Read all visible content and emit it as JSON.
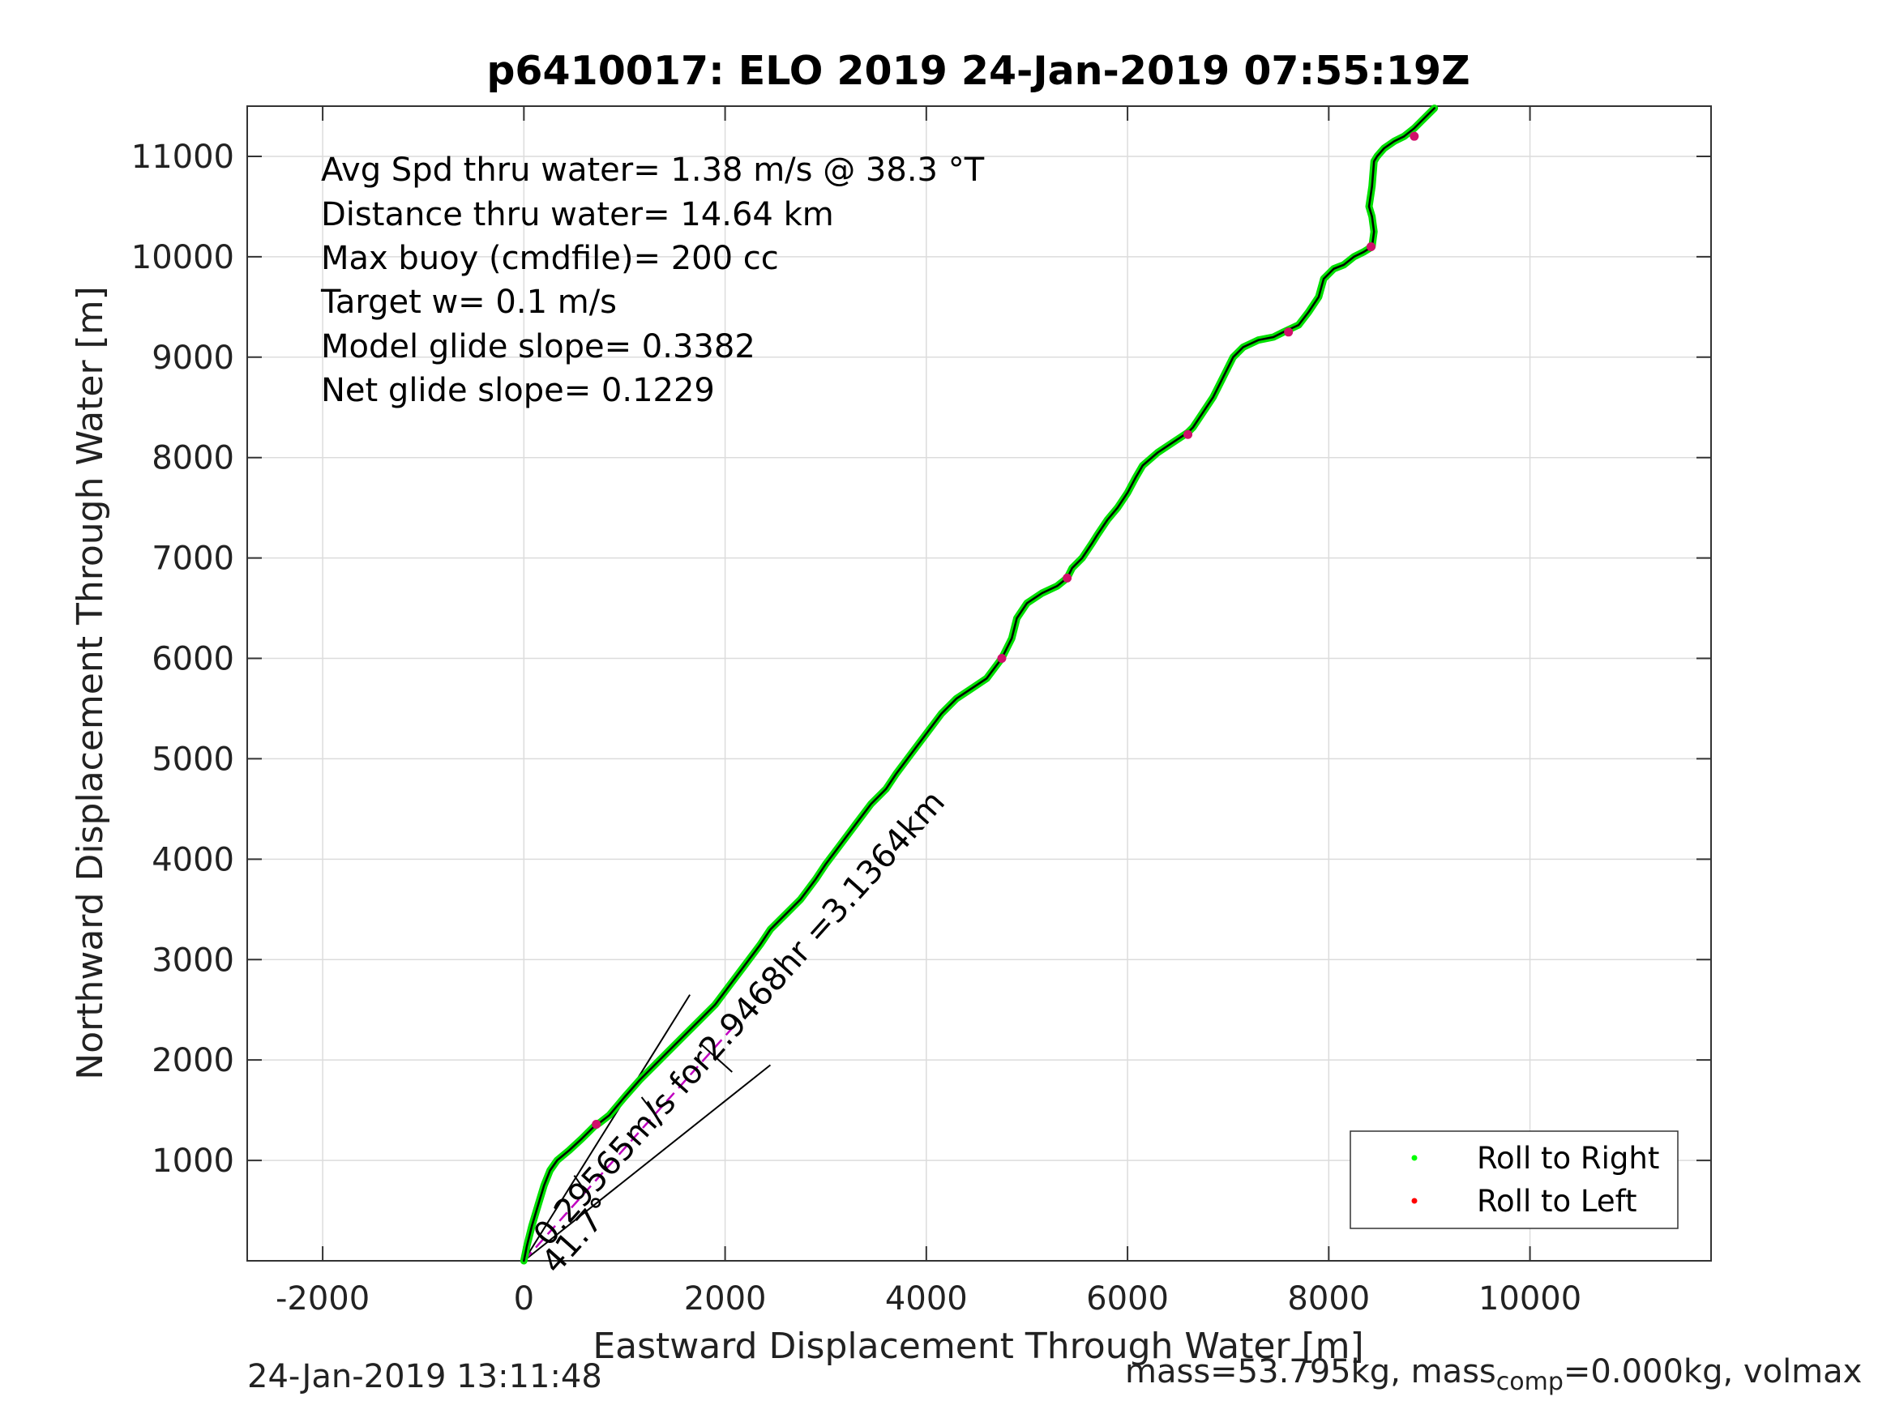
{
  "chart_data": {
    "type": "line",
    "title": "p6410017: ELO 2019 24-Jan-2019 07:55:19Z",
    "xlabel": "Eastward Displacement Through Water [m]",
    "ylabel": "Northward Displacement Through Water [m]",
    "xlim": [
      -2750,
      11800
    ],
    "ylim": [
      0,
      11500
    ],
    "xticks": [
      -2000,
      0,
      2000,
      4000,
      6000,
      8000,
      10000
    ],
    "yticks": [
      1000,
      2000,
      3000,
      4000,
      5000,
      6000,
      7000,
      8000,
      9000,
      10000,
      11000
    ],
    "grid": true,
    "annotations": [
      "Avg Spd thru water=  1.38 m/s @  38.3 °T",
      "Distance thru water= 14.64 km",
      "Max buoy (cmdfile)= 200 cc",
      "Target w= 0.1 m/s",
      "Model glide slope= 0.3382",
      "Net glide slope= 0.1229"
    ],
    "segment_label": "0.29565m/s for2.9468hr =3.1364km",
    "angle_label": "41.7°",
    "legend": {
      "position": "bottom-right",
      "entries": [
        {
          "label": "Roll to Right",
          "color": "#00ff00"
        },
        {
          "label": "Roll to Left",
          "color": "#ff0000"
        }
      ]
    },
    "colors": {
      "track_outer": "#00e000",
      "track_inner": "#000000",
      "roll_left_marks": "#d0106a",
      "heading_segment": "#c000c0"
    },
    "track": {
      "x": [
        0,
        30,
        80,
        140,
        200,
        260,
        330,
        450,
        580,
        700,
        760,
        850,
        1000,
        1150,
        1300,
        1450,
        1600,
        1750,
        1900,
        2050,
        2200,
        2350,
        2450,
        2600,
        2750,
        2900,
        3000,
        3150,
        3300,
        3450,
        3600,
        3700,
        3850,
        4000,
        4150,
        4300,
        4450,
        4600,
        4750,
        4850,
        4900,
        5000,
        5150,
        5300,
        5400,
        5450,
        5550,
        5650,
        5700,
        5800,
        5900,
        6000,
        6080,
        6150,
        6300,
        6450,
        6600,
        6650,
        6750,
        6850,
        6950,
        7050,
        7150,
        7300,
        7450,
        7550,
        7700,
        7800,
        7900,
        7950,
        8050,
        8150,
        8250,
        8350,
        8430,
        8450,
        8430,
        8400,
        8430,
        8450,
        8480,
        8550,
        8650,
        8750,
        8850,
        8950,
        9050
      ],
      "y": [
        0,
        150,
        350,
        550,
        750,
        900,
        1000,
        1100,
        1220,
        1340,
        1380,
        1450,
        1630,
        1800,
        1950,
        2100,
        2250,
        2400,
        2550,
        2750,
        2950,
        3150,
        3300,
        3450,
        3600,
        3800,
        3950,
        4150,
        4350,
        4550,
        4700,
        4850,
        5050,
        5250,
        5450,
        5600,
        5700,
        5800,
        6000,
        6200,
        6400,
        6550,
        6650,
        6720,
        6800,
        6900,
        7000,
        7150,
        7230,
        7380,
        7500,
        7650,
        7800,
        7920,
        8050,
        8150,
        8250,
        8300,
        8450,
        8600,
        8800,
        9000,
        9100,
        9170,
        9200,
        9250,
        9320,
        9450,
        9600,
        9780,
        9880,
        9920,
        10000,
        10050,
        10100,
        10250,
        10400,
        10500,
        10700,
        10950,
        11000,
        11080,
        11150,
        11200,
        11280,
        11380,
        11480
      ]
    },
    "roll_left_points": [
      {
        "x": 720,
        "y": 1360
      },
      {
        "x": 4750,
        "y": 6000
      },
      {
        "x": 5400,
        "y": 6800
      },
      {
        "x": 6600,
        "y": 8230
      },
      {
        "x": 7600,
        "y": 9250
      },
      {
        "x": 8420,
        "y": 10100
      },
      {
        "x": 8850,
        "y": 11200
      }
    ],
    "heading_segment": {
      "x": [
        0,
        2090
      ],
      "y": [
        0,
        2340
      ]
    },
    "heading_wedge": {
      "x1": [
        0,
        1650
      ],
      "y1": [
        0,
        2650
      ],
      "x2": [
        0,
        2450
      ],
      "y2": [
        0,
        1950
      ]
    },
    "heading_ticks": [
      {
        "x": [
          500,
          620
        ],
        "y": [
          850,
          680
        ]
      },
      {
        "x": [
          1170,
          1370
        ],
        "y": [
          1630,
          1370
        ]
      },
      {
        "x": [
          1770,
          2070
        ],
        "y": [
          2150,
          1880
        ]
      }
    ],
    "footer_left": "24-Jan-2019 13:11:48",
    "footer_right_pre": "mass=53.795kg, mass",
    "footer_right_sub": "comp",
    "footer_right_post": "=0.000kg, volmax"
  }
}
